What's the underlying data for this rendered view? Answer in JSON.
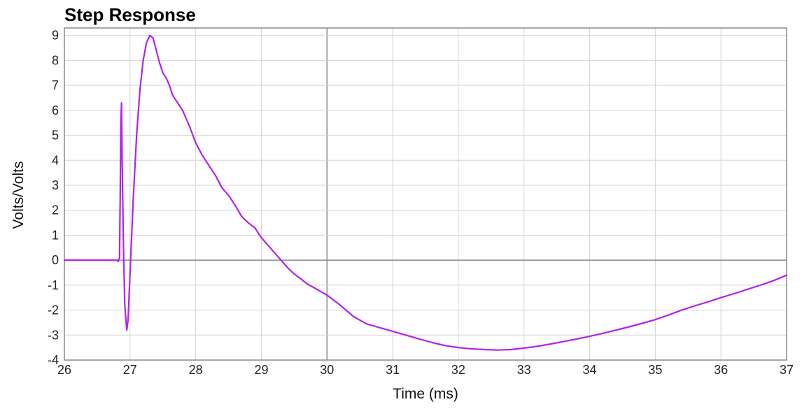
{
  "chart_data": {
    "type": "line",
    "title": "Step Response",
    "xlabel": "Time (ms)",
    "ylabel": "Volts/Volts",
    "xlim": [
      26,
      37
    ],
    "ylim": [
      -4,
      9.3
    ],
    "xticks": [
      26,
      27,
      28,
      29,
      30,
      31,
      32,
      33,
      34,
      35,
      36,
      37
    ],
    "yticks": [
      -4,
      -3,
      -2,
      -1,
      0,
      1,
      2,
      3,
      4,
      5,
      6,
      7,
      8,
      9
    ],
    "grid": true,
    "line_color": "#b223e8",
    "series": [
      {
        "x": [
          26.0,
          26.5,
          26.8,
          26.82,
          26.84,
          26.85,
          26.86,
          26.87,
          26.88,
          26.9,
          26.92,
          26.95,
          26.97,
          27.0,
          27.05,
          27.1,
          27.15,
          27.2,
          27.25,
          27.3,
          27.35,
          27.37,
          27.4,
          27.45,
          27.5,
          27.55,
          27.6,
          27.65,
          27.7,
          27.75,
          27.8,
          27.85,
          27.9,
          28.0,
          28.1,
          28.2,
          28.3,
          28.4,
          28.5,
          28.6,
          28.7,
          28.8,
          28.9,
          29.0,
          29.1,
          29.2,
          29.3,
          29.4,
          29.5,
          29.6,
          29.7,
          29.8,
          29.9,
          30.0,
          30.2,
          30.4,
          30.6,
          30.8,
          31.0,
          31.2,
          31.4,
          31.6,
          31.8,
          32.0,
          32.2,
          32.4,
          32.6,
          32.8,
          33.0,
          33.2,
          33.4,
          33.6,
          33.8,
          34.0,
          34.2,
          34.4,
          34.6,
          34.8,
          35.0,
          35.2,
          35.4,
          35.6,
          35.8,
          36.0,
          36.2,
          36.4,
          36.6,
          36.8,
          37.0
        ],
        "y": [
          0.0,
          0.0,
          0.0,
          -0.05,
          0.1,
          2.5,
          5.5,
          6.3,
          4.0,
          0.5,
          -1.8,
          -2.8,
          -2.4,
          -0.5,
          2.5,
          5.0,
          6.8,
          8.0,
          8.7,
          9.0,
          8.9,
          8.7,
          8.4,
          7.9,
          7.5,
          7.3,
          7.0,
          6.6,
          6.4,
          6.2,
          6.0,
          5.7,
          5.4,
          4.7,
          4.2,
          3.8,
          3.4,
          2.9,
          2.6,
          2.2,
          1.75,
          1.5,
          1.3,
          0.9,
          0.6,
          0.3,
          0.0,
          -0.3,
          -0.55,
          -0.75,
          -0.95,
          -1.1,
          -1.25,
          -1.4,
          -1.8,
          -2.25,
          -2.55,
          -2.7,
          -2.85,
          -3.0,
          -3.15,
          -3.3,
          -3.42,
          -3.5,
          -3.55,
          -3.58,
          -3.6,
          -3.58,
          -3.52,
          -3.45,
          -3.36,
          -3.26,
          -3.16,
          -3.05,
          -2.93,
          -2.8,
          -2.67,
          -2.53,
          -2.38,
          -2.2,
          -2.0,
          -1.83,
          -1.67,
          -1.5,
          -1.34,
          -1.17,
          -1.0,
          -0.82,
          -0.6
        ]
      }
    ]
  }
}
